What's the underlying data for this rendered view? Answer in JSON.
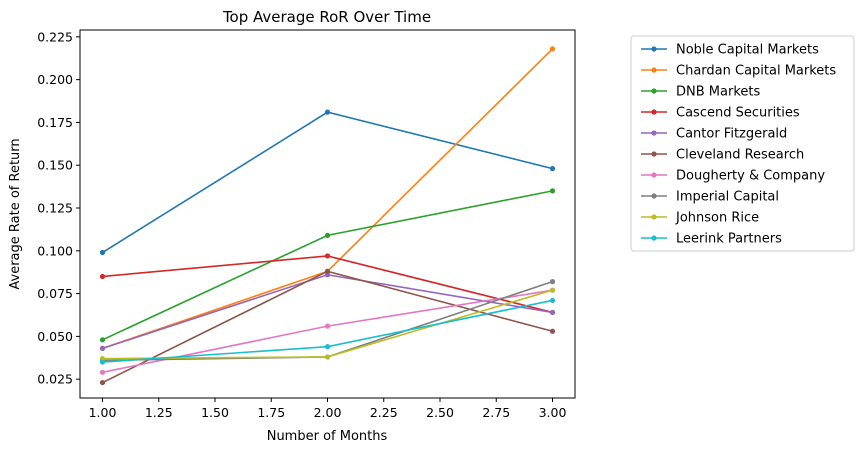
{
  "chart_data": {
    "type": "line",
    "title": "Top Average RoR Over Time",
    "xlabel": "Number of Months",
    "ylabel": "Average Rate of Return",
    "x": [
      1,
      2,
      3
    ],
    "xlim": [
      0.9,
      3.1
    ],
    "ylim": [
      0.014,
      0.229
    ],
    "xticks": [
      1.0,
      1.25,
      1.5,
      1.75,
      2.0,
      2.25,
      2.5,
      2.75,
      3.0
    ],
    "xtick_labels": [
      "1.00",
      "1.25",
      "1.50",
      "1.75",
      "2.00",
      "2.25",
      "2.50",
      "2.75",
      "3.00"
    ],
    "yticks": [
      0.025,
      0.05,
      0.075,
      0.1,
      0.125,
      0.15,
      0.175,
      0.2,
      0.225
    ],
    "ytick_labels": [
      "0.025",
      "0.050",
      "0.075",
      "0.100",
      "0.125",
      "0.150",
      "0.175",
      "0.200",
      "0.225"
    ],
    "grid": false,
    "legend_position": "outside-right",
    "series": [
      {
        "name": "Noble Capital Markets",
        "color": "#1f77b4",
        "values": [
          0.099,
          0.181,
          0.148
        ]
      },
      {
        "name": "Chardan Capital Markets",
        "color": "#ff7f0e",
        "values": [
          0.043,
          0.088,
          0.218
        ]
      },
      {
        "name": "DNB Markets",
        "color": "#2ca02c",
        "values": [
          0.048,
          0.109,
          0.135
        ]
      },
      {
        "name": "Cascend Securities",
        "color": "#d62728",
        "values": [
          0.085,
          0.097,
          0.064
        ]
      },
      {
        "name": "Cantor Fitzgerald",
        "color": "#9467bd",
        "values": [
          0.043,
          0.086,
          0.064
        ]
      },
      {
        "name": "Cleveland Research",
        "color": "#8c564b",
        "values": [
          0.023,
          0.088,
          0.053
        ]
      },
      {
        "name": "Dougherty & Company",
        "color": "#e377c2",
        "values": [
          0.029,
          0.056,
          0.077
        ]
      },
      {
        "name": "Imperial Capital",
        "color": "#7f7f7f",
        "values": [
          0.036,
          0.038,
          0.082
        ]
      },
      {
        "name": "Johnson Rice",
        "color": "#bcbd22",
        "values": [
          0.037,
          0.038,
          0.077
        ]
      },
      {
        "name": "Leerink Partners",
        "color": "#17becf",
        "values": [
          0.035,
          0.044,
          0.071
        ]
      }
    ]
  }
}
